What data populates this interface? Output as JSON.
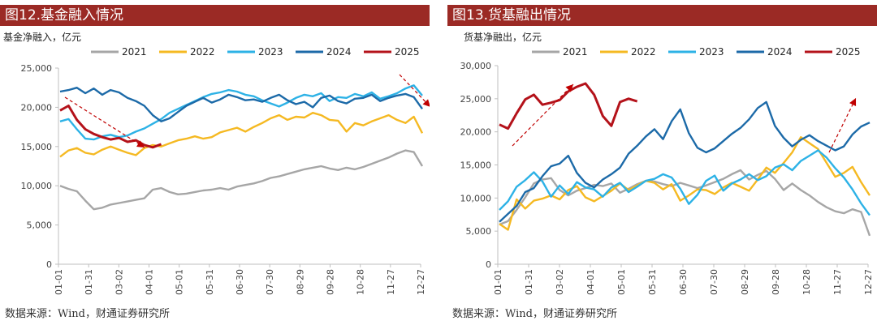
{
  "source_note": "数据来源：Wind，财通证券研究所",
  "colors": {
    "title_bg": "#9b2a25",
    "s2021": "#a6a6a6",
    "s2022": "#f5b922",
    "s2023": "#2db2e6",
    "s2024": "#1c6aa8",
    "s2025": "#b4121a",
    "arrow": "#c00000"
  },
  "chart_data": [
    {
      "type": "line",
      "title": "图12.基金融入情况",
      "ylabel": "基金净融入，亿元",
      "ylim": [
        0,
        25000
      ],
      "yticks": [
        "0",
        "5,000",
        "10,000",
        "15,000",
        "20,000",
        "25,000"
      ],
      "xticks": [
        "01-01",
        "01-31",
        "03-02",
        "04-01",
        "05-01",
        "05-31",
        "06-30",
        "07-30",
        "08-29",
        "09-28",
        "10-28",
        "11-27",
        "12-27"
      ],
      "legend_position": "top",
      "grid": false,
      "series": [
        {
          "name": "2021",
          "color_key": "s2021",
          "values": [
            10000,
            9600,
            9300,
            8100,
            7000,
            7200,
            7600,
            7800,
            8000,
            8200,
            8400,
            9500,
            9700,
            9200,
            8900,
            9000,
            9200,
            9400,
            9500,
            9700,
            9500,
            9900,
            10100,
            10300,
            10600,
            11000,
            11200,
            11500,
            11800,
            12100,
            12300,
            12500,
            12200,
            12000,
            12300,
            12100,
            12400,
            12800,
            13200,
            13600,
            14100,
            14500,
            14300,
            12500
          ]
        },
        {
          "name": "2022",
          "color_key": "s2022",
          "values": [
            13700,
            14500,
            14800,
            14200,
            14000,
            14600,
            15000,
            14600,
            14200,
            13900,
            14800,
            15200,
            15000,
            15400,
            15800,
            16000,
            16300,
            16000,
            16200,
            16800,
            17100,
            17400,
            16900,
            17500,
            18000,
            18600,
            19000,
            18400,
            18800,
            18700,
            19300,
            19000,
            18400,
            18300,
            16900,
            18000,
            17700,
            18200,
            18600,
            19000,
            18400,
            18000,
            18800,
            16700
          ]
        },
        {
          "name": "2023",
          "color_key": "s2023",
          "values": [
            18200,
            18500,
            17200,
            16000,
            15900,
            16300,
            16500,
            16200,
            16400,
            16900,
            17300,
            17900,
            18500,
            19300,
            19800,
            20300,
            20800,
            21300,
            21700,
            21900,
            22200,
            22000,
            21600,
            21400,
            20900,
            20500,
            20100,
            20600,
            21200,
            21600,
            21400,
            21800,
            20800,
            21300,
            21200,
            21700,
            21400,
            21900,
            21100,
            21400,
            21800,
            22400,
            22800,
            21500
          ]
        },
        {
          "name": "2024",
          "color_key": "s2024",
          "values": [
            22000,
            22200,
            22500,
            21800,
            22400,
            21600,
            22200,
            21900,
            21200,
            20800,
            20200,
            19000,
            18200,
            18600,
            19400,
            20200,
            20700,
            21200,
            20600,
            21000,
            21600,
            21300,
            20900,
            21000,
            20700,
            21200,
            21600,
            20900,
            20400,
            20700,
            20000,
            21200,
            21500,
            20800,
            20500,
            21100,
            21200,
            21600,
            20800,
            21200,
            21500,
            21700,
            21300,
            19800
          ]
        },
        {
          "name": "2025",
          "color_key": "s2025",
          "values": [
            19600,
            20200,
            18400,
            17200,
            16600,
            16200,
            15900,
            16100,
            15600,
            15800,
            15200,
            14900,
            15300
          ]
        }
      ]
    },
    {
      "type": "line",
      "title": "图13.货基融出情况",
      "ylabel": "货基净融出，亿元",
      "ylim": [
        0,
        30000
      ],
      "yticks": [
        "0",
        "5,000",
        "10,000",
        "15,000",
        "20,000",
        "25,000",
        "30,000"
      ],
      "xticks": [
        "01-01",
        "01-31",
        "03-02",
        "04-01",
        "05-01",
        "05-31",
        "06-30",
        "07-30",
        "08-29",
        "09-28",
        "10-28",
        "11-27",
        "12-27"
      ],
      "legend_position": "top",
      "grid": false,
      "series": [
        {
          "name": "2021",
          "color_key": "s2021",
          "values": [
            6000,
            6500,
            8200,
            10100,
            12200,
            12800,
            13000,
            11200,
            10400,
            11100,
            11500,
            12000,
            11800,
            12200,
            10800,
            11400,
            12100,
            12600,
            12500,
            12100,
            11800,
            12300,
            11900,
            11500,
            11900,
            12400,
            12900,
            13600,
            14200,
            12800,
            13500,
            14100,
            12900,
            11200,
            12200,
            11200,
            10400,
            9400,
            8600,
            8000,
            7700,
            8300,
            7900,
            4300
          ]
        },
        {
          "name": "2022",
          "color_key": "s2022",
          "values": [
            6100,
            5200,
            9800,
            8400,
            9600,
            9900,
            10400,
            9800,
            11200,
            11800,
            10100,
            9500,
            10300,
            11100,
            12200,
            11200,
            11900,
            12600,
            12300,
            11300,
            12100,
            9600,
            10400,
            11300,
            11200,
            10600,
            11600,
            12300,
            11700,
            11100,
            12800,
            14600,
            13800,
            15300,
            16900,
            19200,
            18300,
            17400,
            15300,
            13200,
            13800,
            14700,
            12400,
            10400
          ]
        },
        {
          "name": "2023",
          "color_key": "s2023",
          "values": [
            8200,
            9500,
            11700,
            12700,
            13900,
            12500,
            10200,
            11900,
            10600,
            12400,
            11600,
            11300,
            10200,
            11600,
            12300,
            10900,
            11700,
            12600,
            12900,
            13600,
            13100,
            11400,
            9100,
            10500,
            12600,
            13400,
            11100,
            12200,
            12800,
            13600,
            12700,
            13300,
            14600,
            15100,
            14200,
            15600,
            16400,
            17200,
            16100,
            14500,
            13100,
            11300,
            9200,
            7400
          ]
        },
        {
          "name": "2024",
          "color_key": "s2024",
          "values": [
            6400,
            7600,
            8800,
            10900,
            11500,
            13300,
            14800,
            15200,
            16400,
            13800,
            12300,
            11600,
            12800,
            13600,
            14600,
            16700,
            17900,
            19300,
            20400,
            18900,
            21600,
            23400,
            19800,
            17600,
            16900,
            17500,
            18600,
            19700,
            20600,
            21900,
            23600,
            24500,
            20900,
            19100,
            17800,
            18800,
            19500,
            18600,
            17900,
            17200,
            17800,
            19600,
            20800,
            21400
          ]
        },
        {
          "name": "2025",
          "color_key": "s2025",
          "values": [
            21100,
            20500,
            22800,
            24900,
            25600,
            24100,
            24400,
            24800,
            26100,
            26800,
            27300,
            25600,
            22400,
            20900,
            24500,
            25000,
            24600
          ]
        }
      ]
    }
  ]
}
